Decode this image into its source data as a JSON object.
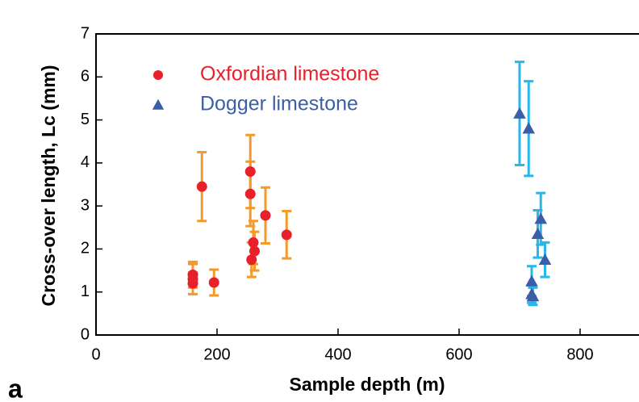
{
  "chart_data": {
    "type": "scatter",
    "x_label": "Sample depth (m)",
    "y_label": "Cross-over length, Lc (mm)",
    "panel_label": "a",
    "xlim": [
      0,
      900
    ],
    "ylim": [
      0,
      7
    ],
    "xticks": [
      0,
      200,
      400,
      600,
      800
    ],
    "yticks": [
      0,
      1,
      2,
      3,
      4,
      5,
      6,
      7
    ],
    "series": [
      {
        "name": "Oxfordian limestone",
        "color": "#e8202a",
        "error_color": "#f39a2b",
        "marker": "circle",
        "x": [
          160,
          160,
          160,
          175,
          195,
          255,
          255,
          257,
          260,
          262,
          280,
          315
        ],
        "values": [
          1.3,
          1.2,
          1.4,
          3.45,
          1.22,
          3.8,
          3.28,
          1.75,
          2.15,
          1.95,
          2.78,
          2.33
        ],
        "errors": [
          0.35,
          0.25,
          0.3,
          0.8,
          0.3,
          0.85,
          0.75,
          0.4,
          0.5,
          0.45,
          0.65,
          0.55
        ]
      },
      {
        "name": "Dogger limestone",
        "color": "#3a5fa8",
        "error_color": "#29b6e8",
        "marker": "triangle",
        "x": [
          700,
          715,
          720,
          720,
          722,
          730,
          735,
          742
        ],
        "values": [
          5.15,
          4.8,
          1.25,
          0.95,
          0.9,
          2.35,
          2.7,
          1.75
        ],
        "errors": [
          1.2,
          1.1,
          0.35,
          0.2,
          0.2,
          0.55,
          0.6,
          0.4
        ]
      }
    ]
  }
}
